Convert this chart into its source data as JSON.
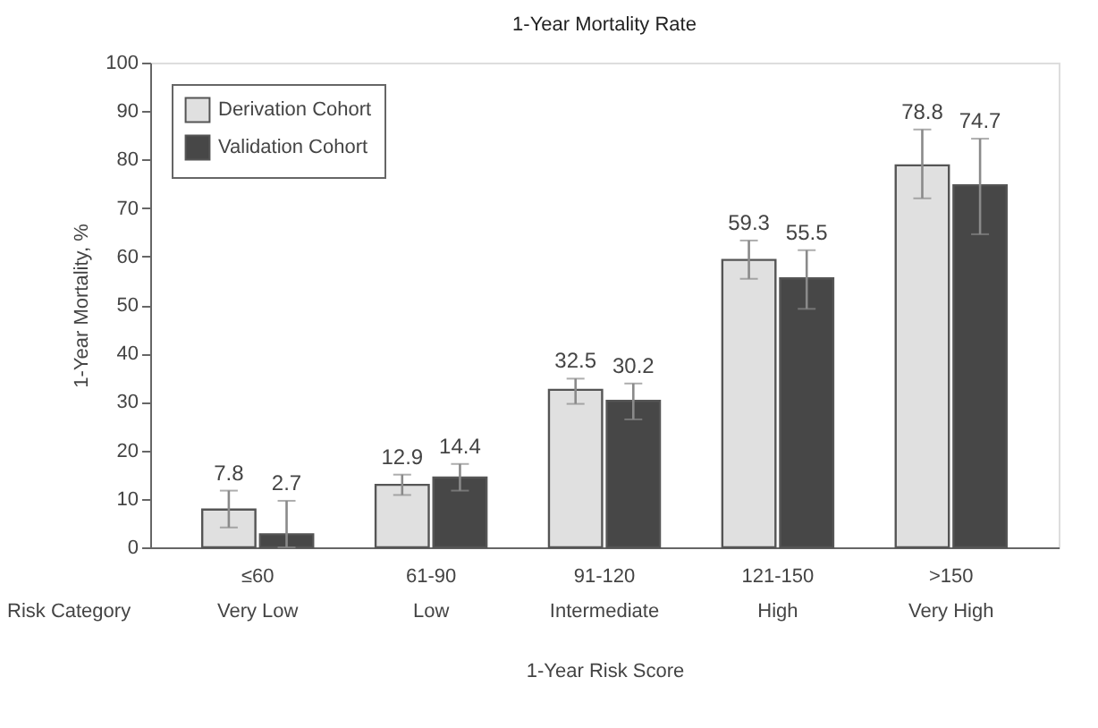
{
  "chart_data": {
    "type": "bar",
    "title": "1-Year Mortality Rate",
    "xlabel": "1-Year Risk Score",
    "ylabel": "1-Year Mortality, %",
    "categories": [
      "≤60",
      "61-90",
      "91-120",
      "121-150",
      ">150"
    ],
    "series": [
      {
        "name": "Derivation Cohort",
        "color": "#e0e0e0",
        "values": [
          7.8,
          12.9,
          32.5,
          59.3,
          78.8
        ],
        "errors": [
          [
            4.1,
            11.7
          ],
          [
            10.8,
            15.0
          ],
          [
            29.6,
            34.8
          ],
          [
            55.4,
            63.3
          ],
          [
            72.0,
            86.2
          ]
        ]
      },
      {
        "name": "Validation Cohort",
        "color": "#474747",
        "values": [
          2.7,
          14.4,
          30.2,
          55.5,
          74.7
        ],
        "errors": [
          [
            0,
            9.6
          ],
          [
            11.7,
            17.2
          ],
          [
            26.4,
            33.8
          ],
          [
            49.2,
            61.3
          ],
          [
            64.6,
            84.3
          ]
        ]
      }
    ],
    "annotations": [
      "Risk Category",
      "Very Low",
      "Low",
      "Intermediate",
      "High",
      "Very High"
    ],
    "ylim": [
      0,
      100
    ],
    "yticks": [
      0,
      10,
      20,
      30,
      40,
      50,
      60,
      70,
      80,
      90,
      100
    ],
    "data_labels": true,
    "grid": false,
    "legend": "top left"
  }
}
